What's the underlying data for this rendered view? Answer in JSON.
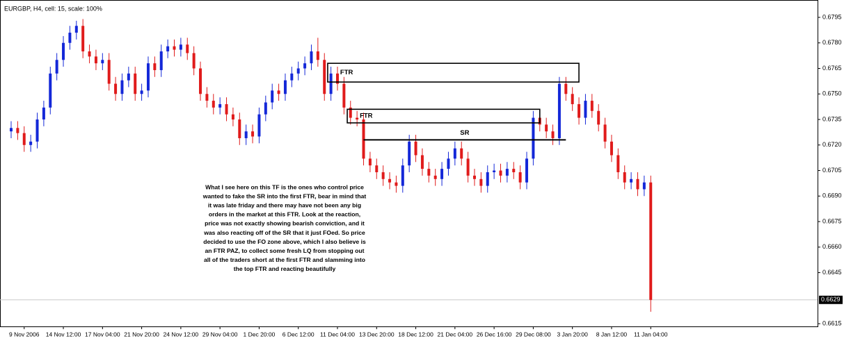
{
  "chart_data": {
    "type": "candlestick",
    "title": "EURGBP, H4, cell: 15, scale: 100%",
    "categories": [
      null,
      null,
      "9 Nov 2006",
      null,
      null,
      null,
      null,
      null,
      "14 Nov 12:00",
      null,
      null,
      null,
      null,
      null,
      "17 Nov 04:00",
      null,
      null,
      null,
      null,
      null,
      "21 Nov 20:00",
      null,
      null,
      null,
      null,
      null,
      "24 Nov 12:00",
      null,
      null,
      null,
      null,
      null,
      "29 Nov 04:00",
      null,
      null,
      null,
      null,
      null,
      "1 Dec 20:00",
      null,
      null,
      null,
      null,
      null,
      "6 Dec 12:00",
      null,
      null,
      null,
      null,
      null,
      "11 Dec 04:00",
      null,
      null,
      null,
      null,
      null,
      "13 Dec 20:00",
      null,
      null,
      null,
      null,
      null,
      "18 Dec 12:00",
      null,
      null,
      null,
      null,
      null,
      "21 Dec 04:00",
      null,
      null,
      null,
      null,
      null,
      "26 Dec 16:00",
      null,
      null,
      null,
      null,
      null,
      "29 Dec 08:00",
      null,
      null,
      null,
      null,
      null,
      "3 Jan 20:00",
      null,
      null,
      null,
      null,
      null,
      "8 Jan 12:00",
      null,
      null,
      null,
      null,
      null,
      "11 Jan 04:00"
    ],
    "open": [
      0.6728,
      0.673,
      0.6727,
      0.672,
      0.6722,
      0.6735,
      0.6742,
      0.6762,
      0.677,
      0.678,
      0.6786,
      0.679,
      0.6775,
      0.6772,
      0.6768,
      0.677,
      0.6756,
      0.675,
      0.6758,
      0.6762,
      0.675,
      0.6752,
      0.6768,
      0.6764,
      0.6775,
      0.6778,
      0.6776,
      0.6779,
      0.6774,
      0.6765,
      0.675,
      0.6746,
      0.6742,
      0.6744,
      0.6738,
      0.6735,
      0.6724,
      0.6728,
      0.6725,
      0.6738,
      0.6745,
      0.6752,
      0.675,
      0.6758,
      0.6762,
      0.6765,
      0.6768,
      0.6775,
      0.677,
      0.675,
      0.6762,
      0.6756,
      0.6742,
      0.6736,
      0.6735,
      0.6712,
      0.6708,
      0.6704,
      0.67,
      0.6698,
      0.6696,
      0.6708,
      0.6722,
      0.6714,
      0.6706,
      0.6702,
      0.67,
      0.6706,
      0.6712,
      0.6718,
      0.6712,
      0.6702,
      0.67,
      0.6696,
      0.6704,
      0.6705,
      0.6702,
      0.6706,
      0.6704,
      0.6698,
      0.6712,
      0.6736,
      0.6732,
      0.6728,
      0.6724,
      0.6756,
      0.675,
      0.6744,
      0.6736,
      0.6746,
      0.674,
      0.6732,
      0.6722,
      0.6714,
      0.6704,
      0.6698,
      0.67,
      0.6694,
      0.6698
    ],
    "high": [
      0.6734,
      0.6734,
      0.6731,
      0.6726,
      0.6739,
      0.6746,
      0.6766,
      0.6774,
      0.6784,
      0.679,
      0.6793,
      0.6794,
      0.6779,
      0.6776,
      0.6774,
      0.6774,
      0.676,
      0.6762,
      0.6766,
      0.6766,
      0.6756,
      0.6772,
      0.6772,
      0.6779,
      0.6782,
      0.6782,
      0.6783,
      0.6783,
      0.6778,
      0.6769,
      0.6754,
      0.675,
      0.6748,
      0.6748,
      0.6742,
      0.6739,
      0.6732,
      0.6732,
      0.6742,
      0.6749,
      0.6756,
      0.6756,
      0.6762,
      0.6766,
      0.6769,
      0.6772,
      0.6779,
      0.6783,
      0.6774,
      0.6766,
      0.6766,
      0.676,
      0.6746,
      0.674,
      0.6739,
      0.6716,
      0.6712,
      0.6708,
      0.6704,
      0.6702,
      0.6712,
      0.6726,
      0.6726,
      0.6718,
      0.671,
      0.6706,
      0.671,
      0.6716,
      0.6722,
      0.6722,
      0.6716,
      0.6706,
      0.6704,
      0.6708,
      0.6709,
      0.6709,
      0.671,
      0.671,
      0.6708,
      0.6716,
      0.674,
      0.674,
      0.6736,
      0.6732,
      0.676,
      0.676,
      0.6754,
      0.6748,
      0.675,
      0.675,
      0.6744,
      0.6736,
      0.6726,
      0.6718,
      0.6708,
      0.6704,
      0.6704,
      0.6702,
      0.6702
    ],
    "low": [
      0.6724,
      0.6723,
      0.6716,
      0.6716,
      0.6718,
      0.6731,
      0.6738,
      0.6758,
      0.6766,
      0.6776,
      0.6782,
      0.6771,
      0.6768,
      0.6764,
      0.6764,
      0.6752,
      0.6746,
      0.6746,
      0.6754,
      0.6746,
      0.6746,
      0.6748,
      0.676,
      0.676,
      0.6771,
      0.6772,
      0.6772,
      0.677,
      0.6761,
      0.6746,
      0.6742,
      0.6738,
      0.6738,
      0.6734,
      0.6731,
      0.672,
      0.672,
      0.6721,
      0.6721,
      0.6734,
      0.6741,
      0.6746,
      0.6746,
      0.6754,
      0.6758,
      0.6761,
      0.6764,
      0.6766,
      0.6746,
      0.6746,
      0.6752,
      0.6738,
      0.6732,
      0.6731,
      0.6708,
      0.6704,
      0.67,
      0.6696,
      0.6694,
      0.6692,
      0.6692,
      0.6704,
      0.671,
      0.6702,
      0.6698,
      0.6696,
      0.6696,
      0.6702,
      0.6708,
      0.6708,
      0.6698,
      0.6696,
      0.6692,
      0.6692,
      0.67,
      0.6698,
      0.6698,
      0.67,
      0.6694,
      0.6694,
      0.6708,
      0.6728,
      0.6724,
      0.672,
      0.672,
      0.6746,
      0.674,
      0.6732,
      0.6732,
      0.6736,
      0.6728,
      0.6718,
      0.671,
      0.67,
      0.6694,
      0.6694,
      0.669,
      0.669,
      0.6622
    ],
    "close": [
      0.673,
      0.6727,
      0.672,
      0.6722,
      0.6735,
      0.6742,
      0.6762,
      0.677,
      0.678,
      0.6786,
      0.679,
      0.6775,
      0.6772,
      0.6768,
      0.677,
      0.6756,
      0.675,
      0.6758,
      0.6762,
      0.675,
      0.6752,
      0.6768,
      0.6764,
      0.6775,
      0.6778,
      0.6776,
      0.6779,
      0.6774,
      0.6765,
      0.675,
      0.6746,
      0.6742,
      0.6744,
      0.6738,
      0.6735,
      0.6724,
      0.6728,
      0.6725,
      0.6738,
      0.6745,
      0.6752,
      0.675,
      0.6758,
      0.6762,
      0.6765,
      0.6768,
      0.6775,
      0.677,
      0.675,
      0.6762,
      0.6756,
      0.6742,
      0.6736,
      0.6735,
      0.6712,
      0.6708,
      0.6704,
      0.67,
      0.6698,
      0.6696,
      0.6708,
      0.6722,
      0.6714,
      0.6706,
      0.6702,
      0.67,
      0.6706,
      0.6712,
      0.6718,
      0.6712,
      0.6702,
      0.67,
      0.6696,
      0.6704,
      0.6705,
      0.6702,
      0.6706,
      0.6704,
      0.6698,
      0.6712,
      0.6736,
      0.6732,
      0.6728,
      0.6724,
      0.6756,
      0.675,
      0.6744,
      0.6736,
      0.6746,
      0.674,
      0.6732,
      0.6722,
      0.6714,
      0.6704,
      0.6698,
      0.67,
      0.6694,
      0.6698,
      0.6629
    ],
    "up_color": "#1428d8",
    "down_color": "#e01b1b",
    "ylim": [
      0.66134,
      0.68052
    ],
    "yticks": [
      0.6795,
      {
        "value": 0.678,
        "label": "0.6780"
      },
      0.6765,
      {
        "value": 0.675,
        "label": "0.6750"
      },
      0.6735,
      {
        "value": 0.672,
        "label": "0.6720"
      },
      0.6705,
      {
        "value": 0.669,
        "label": "0.6690"
      },
      0.6675,
      {
        "value": 0.666,
        "label": "0.6660"
      },
      0.6645,
      0.6615
    ],
    "current_price": 0.6629,
    "zones": [
      {
        "label": "FTR",
        "top": 0.6768,
        "bottom": 0.6757,
        "start": 48.5,
        "end": 87
      },
      {
        "label": "FTR",
        "top": 0.6741,
        "bottom": 0.6733,
        "start": 51.5,
        "end": 81
      }
    ],
    "sr_line": {
      "label": "SR",
      "value": 0.6723,
      "start": 54,
      "end": 85
    },
    "note": [
      "What I see here on this TF is the ones who control price",
      "wanted to fake the SR into the first FTR, bear in mind that",
      "it was late friday and there may have not been any big",
      "orders in the market at this FTR. Look at the reaction,",
      "price was not exactly showing bearish conviction, and it",
      "was also reacting off of the SR that it just FOed. So price",
      "decided to use the FO zone above, which I also believe is",
      "an FTR PAZ, to collect some fresh LQ from stopping out",
      "all of the traders short at the first FTR and slamming into",
      "the top FTR and reacting beautifully"
    ]
  }
}
